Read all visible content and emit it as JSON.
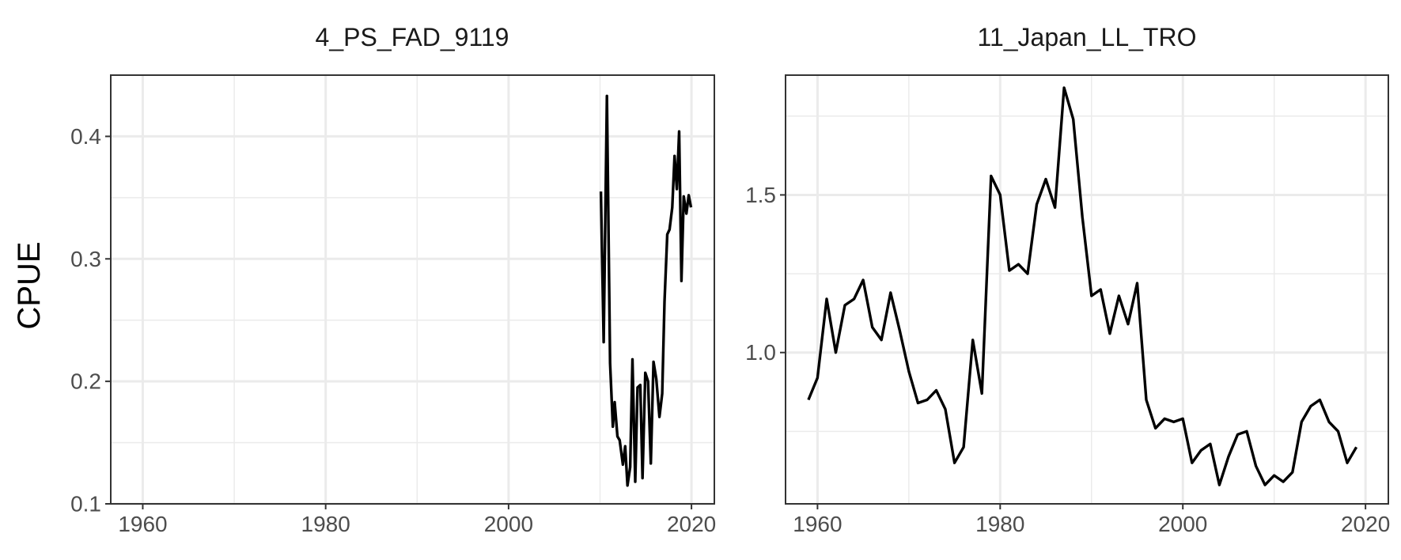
{
  "figure": {
    "ylabel": "CPUE"
  },
  "chart_data": [
    {
      "type": "line",
      "title": "4_PS_FAD_9119",
      "xlabel": "",
      "ylabel": "CPUE",
      "xlim": [
        1956.5,
        2022.5
      ],
      "ylim": [
        0.1,
        0.45
      ],
      "xticks": [
        1960,
        1980,
        2000,
        2020
      ],
      "xtick_labels": [
        "1960",
        "1980",
        "2000",
        "2020"
      ],
      "yticks": [
        0.1,
        0.2,
        0.3,
        0.4
      ],
      "ytick_labels": [
        "0.1",
        "0.2",
        "0.3",
        "0.4"
      ],
      "grid": true,
      "series": [
        {
          "color": "#000000",
          "x": [
            2010.1,
            2010.4,
            2010.75,
            2011.1,
            2011.4,
            2011.6,
            2011.9,
            2012.15,
            2012.5,
            2012.75,
            2013.0,
            2013.3,
            2013.55,
            2013.85,
            2014.1,
            2014.4,
            2014.65,
            2014.95,
            2015.25,
            2015.55,
            2015.85,
            2016.15,
            2016.5,
            2016.8,
            2017.05,
            2017.35,
            2017.6,
            2017.9,
            2018.15,
            2018.4,
            2018.65,
            2018.9,
            2019.15,
            2019.45,
            2019.7,
            2019.95
          ],
          "y": [
            0.355,
            0.232,
            0.433,
            0.215,
            0.163,
            0.183,
            0.155,
            0.152,
            0.132,
            0.147,
            0.115,
            0.13,
            0.218,
            0.118,
            0.195,
            0.197,
            0.121,
            0.207,
            0.2,
            0.133,
            0.216,
            0.202,
            0.171,
            0.19,
            0.265,
            0.32,
            0.324,
            0.342,
            0.384,
            0.357,
            0.404,
            0.282,
            0.351,
            0.337,
            0.352,
            0.342
          ]
        }
      ]
    },
    {
      "type": "line",
      "title": "11_Japan_LL_TRO",
      "xlabel": "",
      "ylabel": "",
      "xlim": [
        1956.5,
        2022.5
      ],
      "ylim": [
        0.52,
        1.88
      ],
      "xticks": [
        1960,
        1980,
        2000,
        2020
      ],
      "xtick_labels": [
        "1960",
        "1980",
        "2000",
        "2020"
      ],
      "yticks": [
        1.0,
        1.5
      ],
      "ytick_labels": [
        "1.0",
        "1.5"
      ],
      "grid": true,
      "series": [
        {
          "color": "#000000",
          "x": [
            1959,
            1960,
            1961,
            1962,
            1963,
            1964,
            1965,
            1966,
            1967,
            1968,
            1969,
            1970,
            1971,
            1972,
            1973,
            1974,
            1975,
            1976,
            1977,
            1978,
            1979,
            1980,
            1981,
            1982,
            1983,
            1984,
            1985,
            1986,
            1987,
            1988,
            1989,
            1990,
            1991,
            1992,
            1993,
            1994,
            1995,
            1996,
            1997,
            1998,
            1999,
            2000,
            2001,
            2002,
            2003,
            2004,
            2005,
            2006,
            2007,
            2008,
            2009,
            2010,
            2011,
            2012,
            2013,
            2014,
            2015,
            2016,
            2017,
            2018,
            2019
          ],
          "y": [
            0.85,
            0.92,
            1.17,
            1.0,
            1.15,
            1.17,
            1.23,
            1.08,
            1.04,
            1.19,
            1.07,
            0.94,
            0.84,
            0.85,
            0.88,
            0.82,
            0.65,
            0.7,
            1.04,
            0.87,
            1.56,
            1.5,
            1.26,
            1.28,
            1.25,
            1.47,
            1.55,
            1.46,
            1.84,
            1.74,
            1.43,
            1.18,
            1.2,
            1.06,
            1.18,
            1.09,
            1.22,
            0.85,
            0.76,
            0.79,
            0.78,
            0.79,
            0.65,
            0.69,
            0.71,
            0.58,
            0.67,
            0.74,
            0.75,
            0.64,
            0.58,
            0.61,
            0.59,
            0.62,
            0.78,
            0.83,
            0.85,
            0.78,
            0.75,
            0.65,
            0.7
          ]
        }
      ]
    }
  ]
}
